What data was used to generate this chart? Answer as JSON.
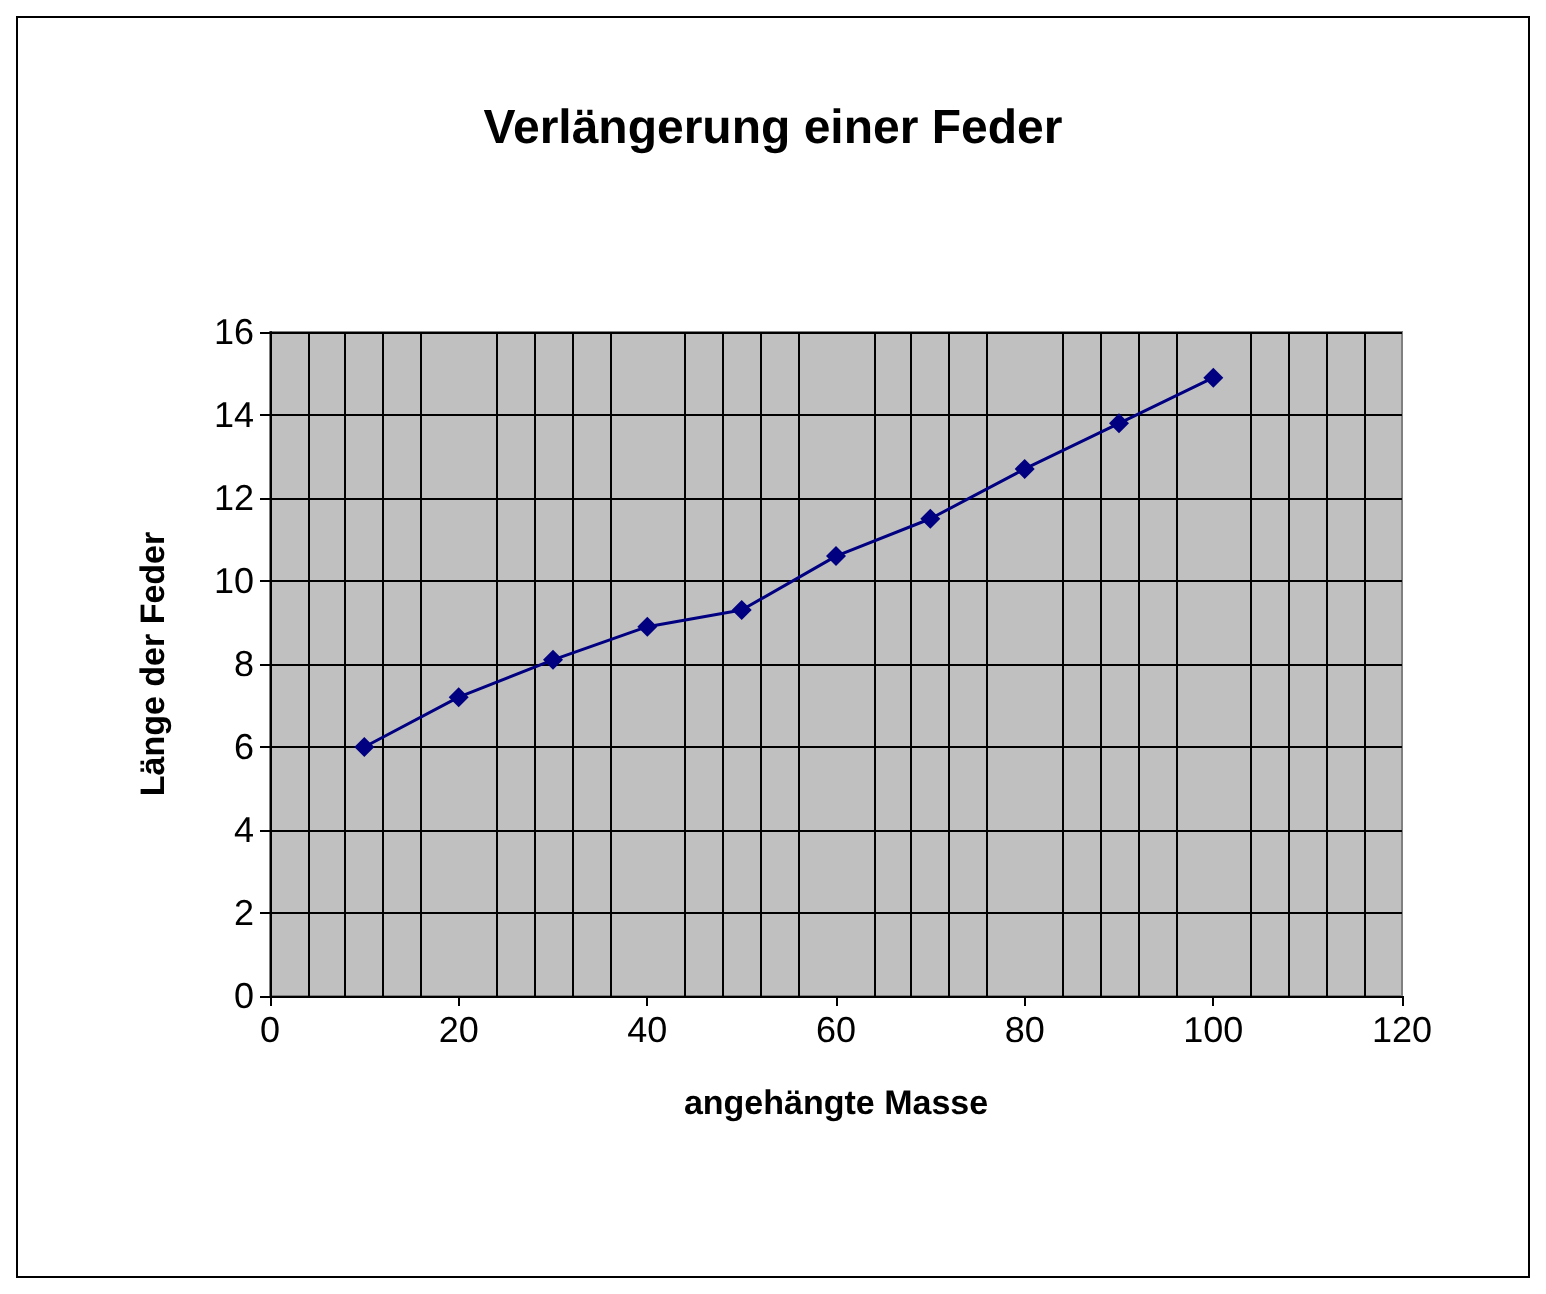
{
  "chart_data": {
    "type": "line",
    "title": "Verlängerung einer Feder",
    "xlabel": "angehängte Masse",
    "ylabel": "Länge der Feder",
    "x": [
      10,
      20,
      30,
      40,
      50,
      60,
      70,
      80,
      90,
      100
    ],
    "series": [
      {
        "color": "#000080",
        "values": [
          6.0,
          7.2,
          8.1,
          8.9,
          9.3,
          10.6,
          11.5,
          12.7,
          13.8,
          14.9
        ]
      }
    ],
    "xlim": [
      0,
      120
    ],
    "xticks": [
      0,
      20,
      40,
      60,
      80,
      100,
      120
    ],
    "ylim": [
      0,
      16
    ],
    "yticks": [
      0,
      2,
      4,
      6,
      8,
      10,
      12,
      14,
      16
    ],
    "grid": true,
    "marker": "diamond",
    "line_style": "solid"
  }
}
